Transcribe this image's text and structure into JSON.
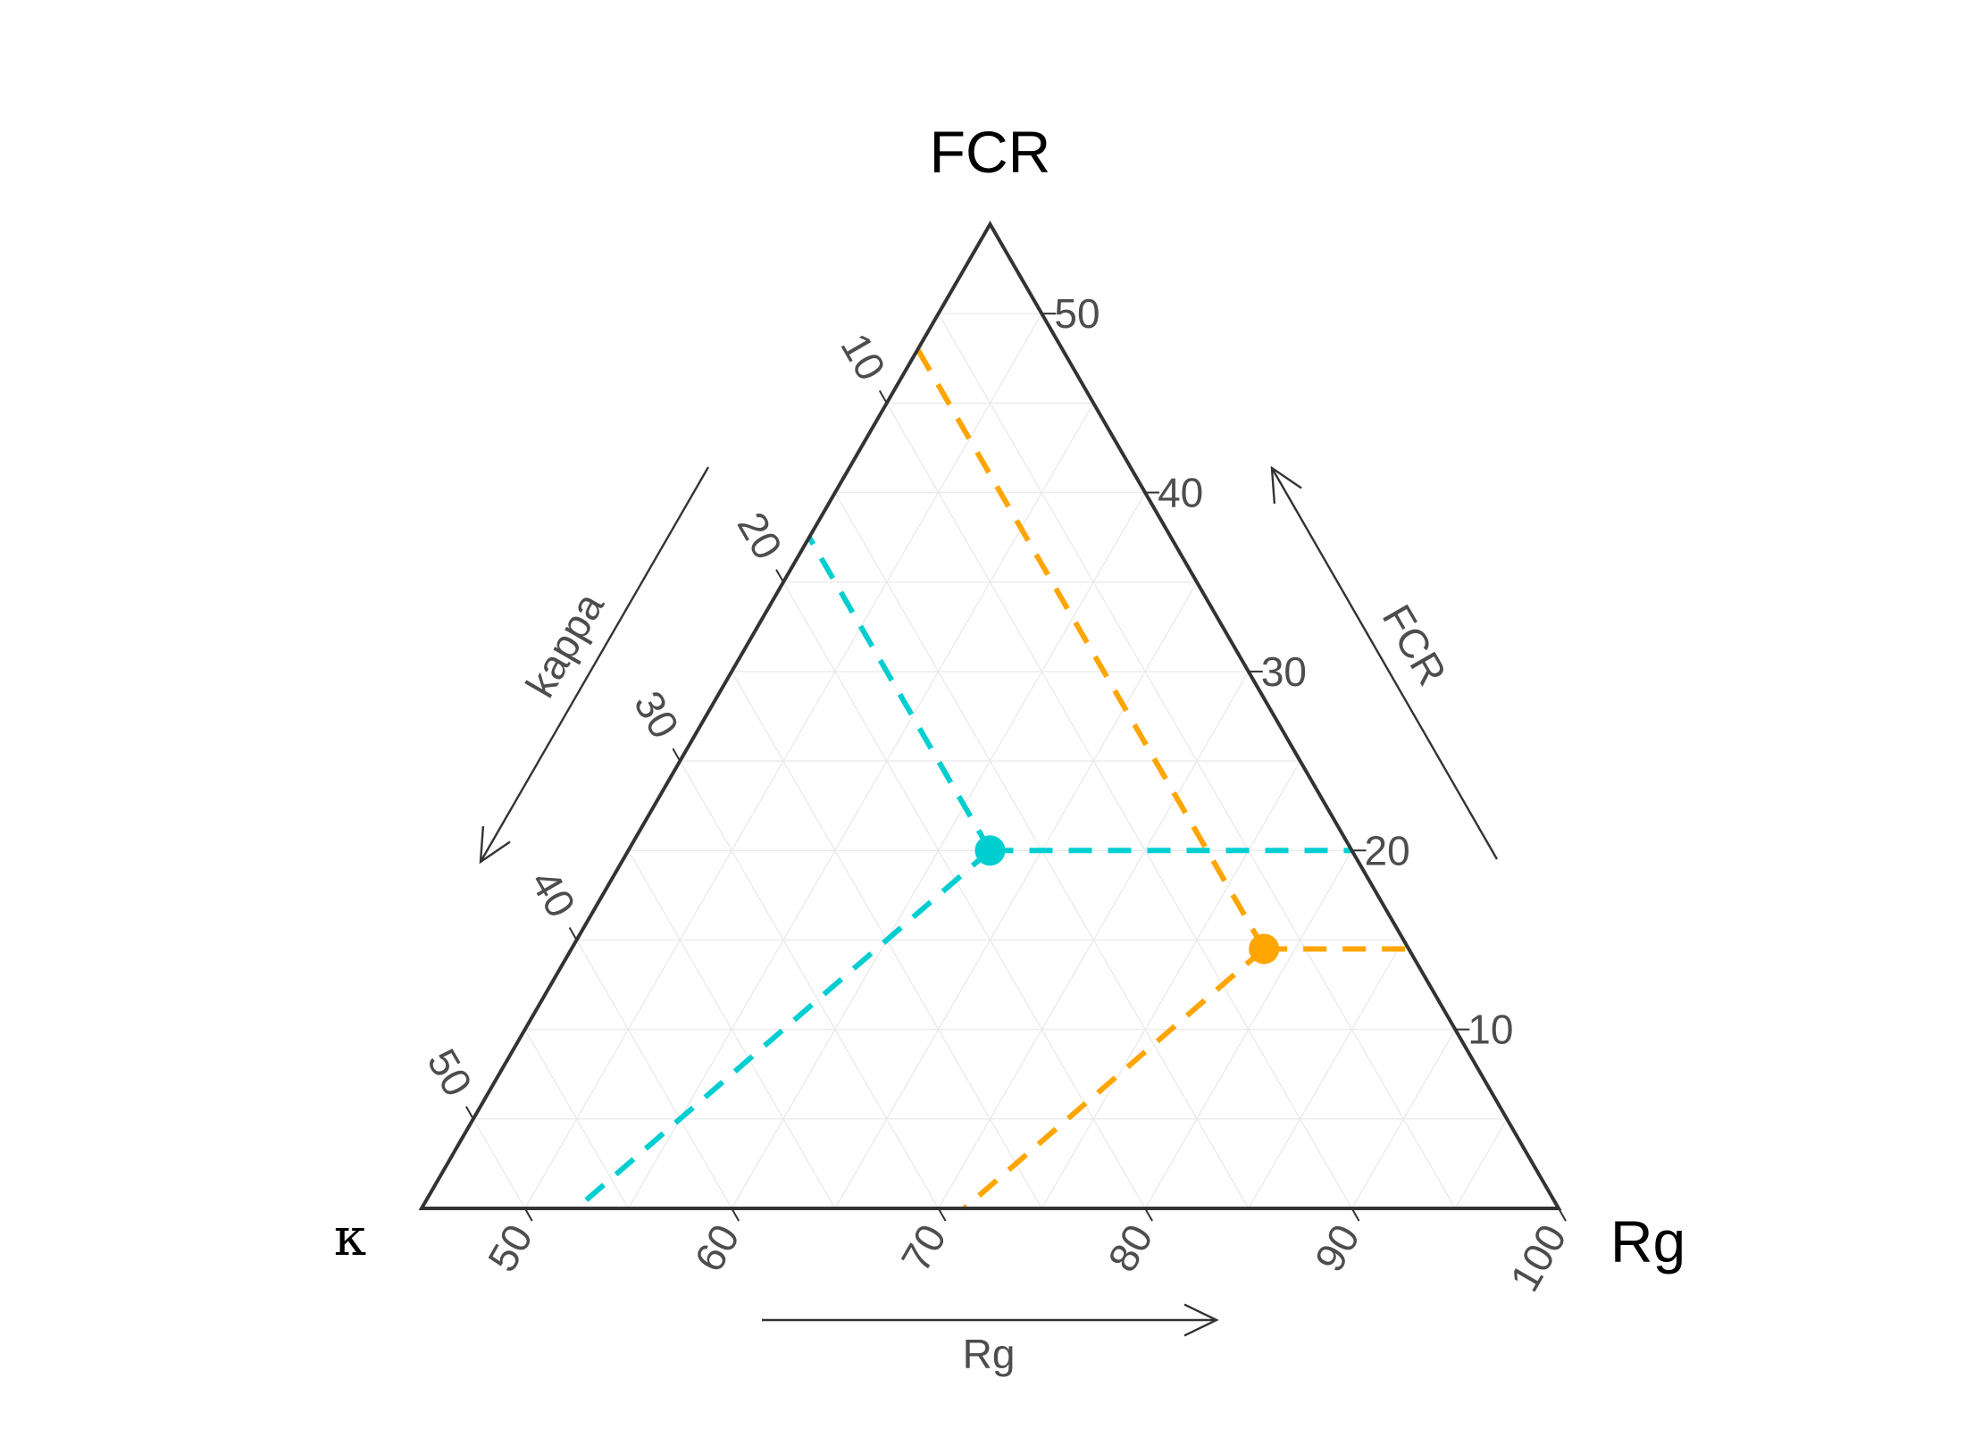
{
  "chart_data": {
    "type": "scatter",
    "subtype": "ternary",
    "vertex_labels": {
      "top": "FCR",
      "left": "κ",
      "right": "Rg"
    },
    "axes": {
      "Rg": {
        "arrow_label": "Rg",
        "ticks": [
          50,
          60,
          70,
          80,
          90,
          100
        ],
        "range": [
          45,
          100
        ]
      },
      "FCR": {
        "arrow_label": "FCR",
        "ticks": [
          10,
          20,
          30,
          40,
          50
        ],
        "range": [
          0,
          55
        ]
      },
      "kappa": {
        "arrow_label": "kappa",
        "ticks": [
          10,
          20,
          30,
          40,
          50
        ],
        "range": [
          0,
          55
        ]
      }
    },
    "points": [
      {
        "Rg": 62.5,
        "FCR": 20.0,
        "kappa": 17.5,
        "color": "#00CED1"
      },
      {
        "Rg": 78.5,
        "FCR": 14.5,
        "kappa": 7.0,
        "color": "#FFA500"
      }
    ],
    "grid": true,
    "guide_lines": "dashed"
  }
}
